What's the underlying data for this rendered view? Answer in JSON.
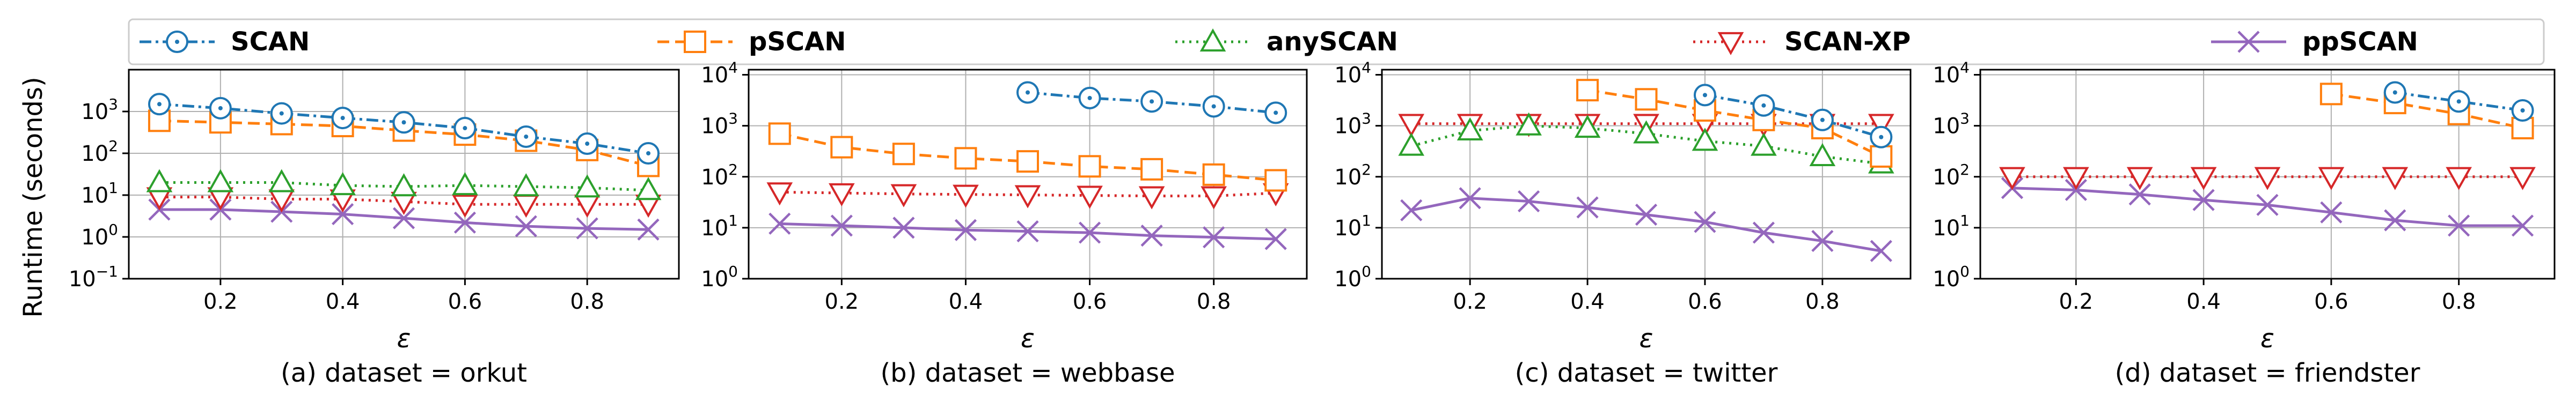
{
  "chart_data": {
    "type": "line",
    "y_scale": "log",
    "ylabel": "Runtime (seconds)",
    "grid": true,
    "legend": {
      "placement": "top",
      "entries": [
        "SCAN",
        "pSCAN",
        "anySCAN",
        "SCAN-XP",
        "ppSCAN"
      ]
    },
    "series_styles": [
      {
        "name": "SCAN",
        "color": "#1f77b4",
        "dash": "dashdot",
        "marker": "circle-dot"
      },
      {
        "name": "pSCAN",
        "color": "#ff7f0e",
        "dash": "dashed",
        "marker": "square"
      },
      {
        "name": "anySCAN",
        "color": "#2ca02c",
        "dash": "dotted",
        "marker": "triangle-up"
      },
      {
        "name": "SCAN-XP",
        "color": "#d62728",
        "dash": "dotted",
        "marker": "triangle-down"
      },
      {
        "name": "ppSCAN",
        "color": "#9467bd",
        "dash": "solid",
        "marker": "x"
      }
    ],
    "panels": [
      {
        "caption": "(a) dataset = orkut",
        "xlabel": "ε",
        "xlim": [
          0.05,
          0.95
        ],
        "ylim_exp": [
          -1,
          4
        ],
        "yticks_exp": [
          -1,
          0,
          1,
          2,
          3
        ],
        "xticks": [
          "0.2",
          "0.4",
          "0.6",
          "0.8"
        ],
        "x": [
          0.1,
          0.2,
          0.3,
          0.4,
          0.5,
          0.6,
          0.7,
          0.8,
          0.9
        ],
        "series": [
          {
            "name": "SCAN",
            "values": [
              1500,
              1200,
              900,
              700,
              550,
              400,
              250,
              170,
              100
            ]
          },
          {
            "name": "pSCAN",
            "values": [
              600,
              550,
              500,
              450,
              350,
              280,
              200,
              120,
              50
            ]
          },
          {
            "name": "anySCAN",
            "values": [
              20,
              20,
              20,
              17,
              16,
              17,
              16,
              15,
              13
            ]
          },
          {
            "name": "SCAN-XP",
            "values": [
              9,
              9,
              8,
              8,
              7,
              6,
              6,
              6,
              6
            ]
          },
          {
            "name": "ppSCAN",
            "values": [
              4.5,
              4.5,
              4,
              3.5,
              2.8,
              2.2,
              1.8,
              1.6,
              1.5
            ]
          }
        ]
      },
      {
        "caption": "(b) dataset = webbase",
        "xlabel": "ε",
        "xlim": [
          0.05,
          0.95
        ],
        "ylim_exp": [
          0,
          4.1
        ],
        "yticks_exp": [
          0,
          1,
          2,
          3,
          4
        ],
        "xticks": [
          "0.2",
          "0.4",
          "0.6",
          "0.8"
        ],
        "x": [
          0.1,
          0.2,
          0.3,
          0.4,
          0.5,
          0.6,
          0.7,
          0.8,
          0.9
        ],
        "series": [
          {
            "name": "SCAN",
            "values": [
              null,
              null,
              null,
              null,
              4500,
              3500,
              3000,
              2400,
              1800
            ]
          },
          {
            "name": "pSCAN",
            "values": [
              700,
              380,
              280,
              230,
              200,
              160,
              140,
              110,
              85
            ]
          },
          {
            "name": "anySCAN",
            "values": [
              null,
              null,
              null,
              null,
              null,
              null,
              null,
              null,
              null
            ]
          },
          {
            "name": "SCAN-XP",
            "values": [
              50,
              48,
              46,
              45,
              44,
              43,
              42,
              42,
              48
            ]
          },
          {
            "name": "ppSCAN",
            "values": [
              12,
              11,
              10,
              9,
              8.5,
              8,
              7,
              6.5,
              6
            ]
          }
        ]
      },
      {
        "caption": "(c) dataset = twitter",
        "xlabel": "ε",
        "xlim": [
          0.05,
          0.95
        ],
        "ylim_exp": [
          0,
          4.1
        ],
        "yticks_exp": [
          0,
          1,
          2,
          3,
          4
        ],
        "xticks": [
          "0.2",
          "0.4",
          "0.6",
          "0.8"
        ],
        "x": [
          0.1,
          0.2,
          0.3,
          0.4,
          0.5,
          0.6,
          0.7,
          0.8,
          0.9
        ],
        "series": [
          {
            "name": "SCAN",
            "values": [
              null,
              null,
              null,
              null,
              null,
              4000,
              2500,
              1300,
              600
            ]
          },
          {
            "name": "pSCAN",
            "values": [
              null,
              null,
              null,
              5000,
              3300,
              2000,
              1300,
              900,
              250
            ]
          },
          {
            "name": "anySCAN",
            "values": [
              400,
              800,
              1000,
              900,
              700,
              500,
              400,
              250,
              180
            ]
          },
          {
            "name": "SCAN-XP",
            "values": [
              1100,
              1100,
              1100,
              1100,
              1100,
              1100,
              1100,
              1100,
              1100
            ]
          },
          {
            "name": "ppSCAN",
            "values": [
              22,
              38,
              33,
              25,
              18,
              13,
              8,
              5.5,
              3.5
            ]
          }
        ]
      },
      {
        "caption": "(d) dataset = friendster",
        "xlabel": "ε",
        "xlim": [
          0.05,
          0.95
        ],
        "ylim_exp": [
          0,
          4.1
        ],
        "yticks_exp": [
          0,
          1,
          2,
          3,
          4
        ],
        "xticks": [
          "0.2",
          "0.4",
          "0.6",
          "0.8"
        ],
        "x": [
          0.1,
          0.2,
          0.3,
          0.4,
          0.5,
          0.6,
          0.7,
          0.8,
          0.9
        ],
        "series": [
          {
            "name": "SCAN",
            "values": [
              null,
              null,
              null,
              null,
              null,
              null,
              4500,
              3000,
              2000
            ]
          },
          {
            "name": "pSCAN",
            "values": [
              null,
              null,
              null,
              null,
              null,
              4200,
              2800,
              1700,
              900
            ]
          },
          {
            "name": "anySCAN",
            "values": [
              null,
              null,
              null,
              null,
              null,
              null,
              null,
              null,
              null
            ]
          },
          {
            "name": "SCAN-XP",
            "values": [
              100,
              100,
              100,
              100,
              100,
              100,
              100,
              100,
              100
            ]
          },
          {
            "name": "ppSCAN",
            "values": [
              60,
              55,
              45,
              35,
              28,
              20,
              14,
              11,
              11
            ]
          }
        ]
      }
    ]
  }
}
